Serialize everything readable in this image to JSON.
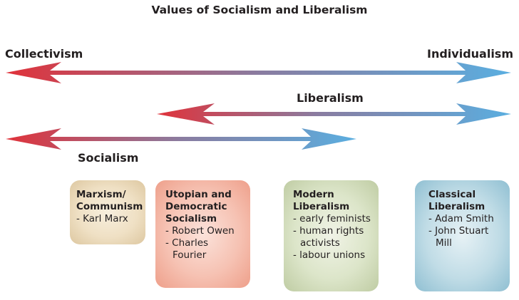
{
  "title": "Values of Socialism and Liberalism",
  "spectrum": {
    "left_label": "Collectivism",
    "right_label": "Individualism"
  },
  "ideologies": {
    "liberalism_label": "Liberalism",
    "socialism_label": "Socialism"
  },
  "colors": {
    "collectivist_red": "#e0323a",
    "individualist_blue": "#5aaee0",
    "mid_purple": "#8a7ca0"
  },
  "boxes": [
    {
      "heading": "Marxism/\nCommunism",
      "items": [
        "- Karl Marx"
      ]
    },
    {
      "heading": "Utopian and\nDemocratic\nSocialism",
      "items": [
        "- Robert Owen",
        "- Charles Fourier"
      ]
    },
    {
      "heading": "Modern\nLiberalism",
      "items": [
        "- early feminists",
        "- human rights activists",
        "- labour unions"
      ]
    },
    {
      "heading": "Classical\nLiberalism",
      "items": [
        "- Adam Smith",
        "- John Stuart Mill"
      ]
    }
  ]
}
